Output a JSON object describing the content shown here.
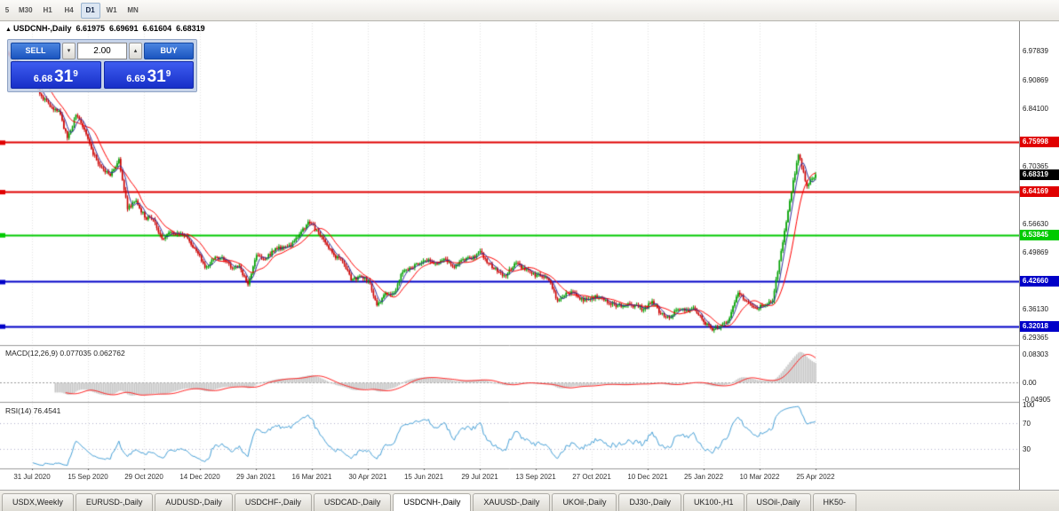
{
  "toolbar": {
    "timeframes": [
      {
        "label": "5",
        "active": false
      },
      {
        "label": "M30",
        "active": false
      },
      {
        "label": "H1",
        "active": false
      },
      {
        "label": "H4",
        "active": false
      },
      {
        "label": "D1",
        "active": true
      },
      {
        "label": "W1",
        "active": false
      },
      {
        "label": "MN",
        "active": false
      }
    ]
  },
  "chart_header": {
    "marker": "▲",
    "title": "USDCNH-,Daily",
    "open": "6.61975",
    "high": "6.69691",
    "low": "6.61604",
    "close": "6.68319"
  },
  "trade_panel": {
    "sell_label": "SELL",
    "buy_label": "BUY",
    "volume": "2.00",
    "spin_down": "▾",
    "spin_up": "▴",
    "bid": {
      "main": "6.68",
      "pips": "31",
      "sup": "9"
    },
    "ask": {
      "main": "6.69",
      "pips": "31",
      "sup": "9"
    }
  },
  "price_scale": {
    "ticks": [
      {
        "label": "6.97839"
      },
      {
        "label": "6.90869"
      },
      {
        "label": "6.84100"
      },
      {
        "label": "6.70365"
      },
      {
        "label": "6.56630"
      },
      {
        "label": "6.49869"
      },
      {
        "label": "6.36130"
      },
      {
        "label": "6.29365"
      }
    ],
    "badges": [
      {
        "label": "6.75998",
        "color": "#e00000",
        "line": true
      },
      {
        "label": "6.68319",
        "color": "#000000",
        "line": false
      },
      {
        "label": "6.64169",
        "color": "#e00000",
        "line": true
      },
      {
        "label": "6.53845",
        "color": "#00ca00",
        "line": true
      },
      {
        "label": "6.42660",
        "color": "#0000c8",
        "line": true
      },
      {
        "label": "6.32018",
        "color": "#0000c8",
        "line": true
      }
    ]
  },
  "indicators": {
    "macd": {
      "label": "MACD(12,26,9) 0.077035 0.062762",
      "scale": [
        {
          "label": "0.08303",
          "value": 0.08303
        },
        {
          "label": "0.00",
          "value": 0
        },
        {
          "label": "-0.04905",
          "value": -0.04905
        }
      ]
    },
    "rsi": {
      "label": "RSI(14) 76.4541",
      "scale": [
        {
          "label": "100",
          "value": 100
        },
        {
          "label": "70",
          "value": 70
        },
        {
          "label": "30",
          "value": 30
        }
      ],
      "levels": [
        70,
        30
      ]
    }
  },
  "time_axis": {
    "labels": [
      "31 Jul 2020",
      "15 Sep 2020",
      "29 Oct 2020",
      "14 Dec 2020",
      "29 Jan 2021",
      "16 Mar 2021",
      "30 Apr 2021",
      "15 Jun 2021",
      "29 Jul 2021",
      "13 Sep 2021",
      "27 Oct 2021",
      "10 Dec 2021",
      "25 Jan 2022",
      "10 Mar 2022",
      "25 Apr 2022"
    ]
  },
  "tabs": {
    "items": [
      {
        "label": "USDX,Weekly",
        "active": false
      },
      {
        "label": "EURUSD-,Daily",
        "active": false
      },
      {
        "label": "AUDUSD-,Daily",
        "active": false
      },
      {
        "label": "USDCHF-,Daily",
        "active": false
      },
      {
        "label": "USDCAD-,Daily",
        "active": false
      },
      {
        "label": "USDCNH-,Daily",
        "active": true
      },
      {
        "label": "XAUUSD-,Daily",
        "active": false
      },
      {
        "label": "UKOil-,Daily",
        "active": false
      },
      {
        "label": "DJ30-,Daily",
        "active": false
      },
      {
        "label": "UK100-,H1",
        "active": false
      },
      {
        "label": "USOil-,Daily",
        "active": false
      },
      {
        "label": "HK50-",
        "active": false
      }
    ]
  },
  "chart_data": {
    "type": "candlestick",
    "symbol": "USDCNH-",
    "timeframe": "Daily",
    "current_ohlc": {
      "open": 6.61975,
      "high": 6.69691,
      "low": 6.61604,
      "close": 6.68319
    },
    "visible_price_range": [
      6.277,
      7.045
    ],
    "x_range": [
      "31 Jul 2020",
      "25 Apr 2022"
    ],
    "approx_weekly_closes": [
      6.975,
      6.955,
      6.945,
      6.92,
      6.87,
      6.845,
      6.835,
      6.77,
      6.825,
      6.79,
      6.73,
      6.7,
      6.68,
      6.72,
      6.6,
      6.62,
      6.58,
      6.575,
      6.53,
      6.545,
      6.54,
      6.53,
      6.5,
      6.46,
      6.48,
      6.485,
      6.46,
      6.465,
      6.42,
      6.49,
      6.48,
      6.5,
      6.51,
      6.51,
      6.54,
      6.57,
      6.55,
      6.52,
      6.49,
      6.475,
      6.43,
      6.44,
      6.43,
      6.37,
      6.4,
      6.4,
      6.45,
      6.46,
      6.47,
      6.48,
      6.47,
      6.48,
      6.46,
      6.48,
      6.48,
      6.5,
      6.47,
      6.45,
      6.44,
      6.47,
      6.46,
      6.445,
      6.44,
      6.43,
      6.38,
      6.4,
      6.4,
      6.38,
      6.39,
      6.39,
      6.375,
      6.37,
      6.37,
      6.37,
      6.36,
      6.38,
      6.35,
      6.34,
      6.36,
      6.36,
      6.36,
      6.33,
      6.31,
      6.32,
      6.34,
      6.4,
      6.38,
      6.365,
      6.37,
      6.38,
      6.5,
      6.62,
      6.73,
      6.655,
      6.683
    ],
    "horizontal_levels": [
      {
        "price": 6.75998,
        "color": "#e00000"
      },
      {
        "price": 6.64169,
        "color": "#e00000"
      },
      {
        "price": 6.53845,
        "color": "#00ca00"
      },
      {
        "price": 6.4266,
        "color": "#0000c8"
      },
      {
        "price": 6.32018,
        "color": "#0000c8"
      }
    ],
    "macd": {
      "fast": 12,
      "slow": 26,
      "signal": 9,
      "current_values": [
        0.077035,
        0.062762
      ],
      "scale_range": [
        -0.055,
        0.1
      ]
    },
    "rsi": {
      "period": 14,
      "current_value": 76.4541
    },
    "colors": {
      "up": "#00a000",
      "down": "#cc0000",
      "ma_fast": "#30309c",
      "ma_slow": "#ff0000",
      "macd_hist": "#c6c6c6",
      "macd_signal": "#ff2020",
      "rsi_line": "#46a0d7"
    }
  }
}
